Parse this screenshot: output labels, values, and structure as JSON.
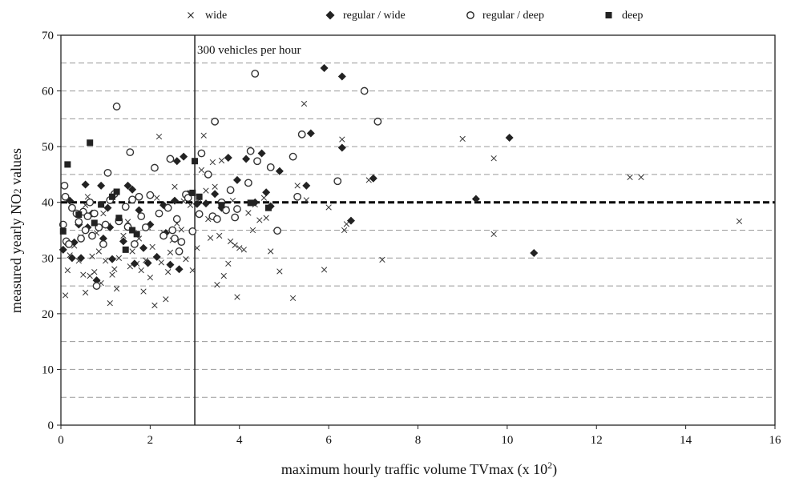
{
  "chart_data": {
    "type": "scatter",
    "title": "",
    "xlabel": "maximum hourly traffic volume TVmax (x 10",
    "xlabel_superscript": "2",
    "xlabel_suffix": ")",
    "ylabel_prefix": "measured yearly NO",
    "ylabel_subscript": "2",
    "ylabel_suffix": " values",
    "xlim": [
      0,
      16
    ],
    "ylim": [
      0,
      70
    ],
    "x_ticks": [
      0,
      2,
      4,
      6,
      8,
      10,
      12,
      14,
      16
    ],
    "y_ticks": [
      0,
      10,
      20,
      30,
      40,
      50,
      60,
      70
    ],
    "y_gridlines_dashed": [
      5,
      10,
      15,
      20,
      25,
      30,
      35,
      45,
      50,
      55,
      60,
      65
    ],
    "grid": true,
    "legend_position": "top",
    "reference_line_y": 40,
    "reference_line_x": 3,
    "annotation": "300 vehicles per hour",
    "series": [
      {
        "name": "wide",
        "marker": "x",
        "points": [
          [
            0.1,
            23.3
          ],
          [
            0.15,
            27.8
          ],
          [
            0.2,
            30.5
          ],
          [
            0.3,
            32.2
          ],
          [
            0.4,
            29.5
          ],
          [
            0.45,
            33.8
          ],
          [
            0.5,
            27.0
          ],
          [
            0.55,
            23.8
          ],
          [
            0.55,
            39.5
          ],
          [
            0.6,
            41.0
          ],
          [
            0.65,
            26.8
          ],
          [
            0.7,
            30.3
          ],
          [
            0.75,
            27.5
          ],
          [
            0.8,
            34.5
          ],
          [
            0.85,
            31.2
          ],
          [
            0.9,
            25.5
          ],
          [
            0.95,
            38.0
          ],
          [
            1.0,
            29.5
          ],
          [
            1.05,
            35.8
          ],
          [
            1.1,
            21.9
          ],
          [
            1.15,
            27.0
          ],
          [
            1.2,
            28.0
          ],
          [
            1.25,
            24.5
          ],
          [
            1.3,
            30.0
          ],
          [
            1.4,
            34.0
          ],
          [
            1.5,
            36.5
          ],
          [
            1.55,
            28.5
          ],
          [
            1.6,
            31.2
          ],
          [
            1.7,
            29.0
          ],
          [
            1.75,
            33.5
          ],
          [
            1.8,
            27.8
          ],
          [
            1.85,
            24.0
          ],
          [
            1.9,
            29.6
          ],
          [
            1.95,
            35.5
          ],
          [
            2.0,
            26.5
          ],
          [
            2.05,
            32.0
          ],
          [
            2.1,
            21.5
          ],
          [
            2.15,
            40.8
          ],
          [
            2.2,
            51.8
          ],
          [
            2.25,
            29.2
          ],
          [
            2.3,
            34.5
          ],
          [
            2.35,
            22.6
          ],
          [
            2.4,
            27.5
          ],
          [
            2.45,
            31.0
          ],
          [
            2.5,
            33.2
          ],
          [
            2.55,
            42.8
          ],
          [
            2.6,
            36.2
          ],
          [
            2.7,
            35.1
          ],
          [
            2.75,
            40.2
          ],
          [
            2.8,
            29.8
          ],
          [
            2.9,
            39.5
          ],
          [
            2.95,
            27.8
          ],
          [
            3.05,
            31.8
          ],
          [
            3.1,
            40.5
          ],
          [
            3.15,
            45.8
          ],
          [
            3.2,
            52.0
          ],
          [
            3.25,
            42.1
          ],
          [
            3.3,
            37.0
          ],
          [
            3.35,
            33.6
          ],
          [
            3.4,
            47.2
          ],
          [
            3.45,
            42.8
          ],
          [
            3.5,
            25.2
          ],
          [
            3.55,
            34.0
          ],
          [
            3.6,
            47.5
          ],
          [
            3.65,
            26.8
          ],
          [
            3.7,
            38.8
          ],
          [
            3.75,
            29.0
          ],
          [
            3.8,
            33.0
          ],
          [
            3.85,
            40.3
          ],
          [
            3.9,
            32.3
          ],
          [
            3.95,
            23.0
          ],
          [
            4.0,
            31.8
          ],
          [
            4.1,
            31.5
          ],
          [
            4.2,
            38.1
          ],
          [
            4.3,
            35.0
          ],
          [
            4.35,
            39.6
          ],
          [
            4.45,
            36.8
          ],
          [
            4.55,
            40.8
          ],
          [
            4.6,
            37.2
          ],
          [
            4.7,
            31.2
          ],
          [
            4.9,
            27.6
          ],
          [
            5.2,
            22.8
          ],
          [
            5.3,
            43.0
          ],
          [
            5.45,
            57.7
          ],
          [
            5.5,
            40.4
          ],
          [
            5.9,
            27.9
          ],
          [
            6.0,
            39.1
          ],
          [
            6.3,
            51.3
          ],
          [
            6.35,
            35.0
          ],
          [
            6.4,
            36.1
          ],
          [
            6.9,
            44.0
          ],
          [
            7.2,
            29.7
          ],
          [
            9.0,
            51.4
          ],
          [
            9.7,
            34.3
          ],
          [
            9.7,
            47.9
          ],
          [
            12.75,
            44.5
          ],
          [
            13.0,
            44.5
          ],
          [
            15.2,
            36.6
          ]
        ]
      },
      {
        "name": "regular / wide",
        "marker": "diamond",
        "points": [
          [
            0.05,
            31.5
          ],
          [
            0.15,
            32.5
          ],
          [
            0.2,
            40.3
          ],
          [
            0.25,
            30.0
          ],
          [
            0.3,
            32.8
          ],
          [
            0.4,
            36.0
          ],
          [
            0.45,
            30.0
          ],
          [
            0.55,
            43.2
          ],
          [
            0.6,
            35.5
          ],
          [
            0.7,
            38.0
          ],
          [
            0.8,
            26.0
          ],
          [
            0.9,
            43.0
          ],
          [
            0.95,
            33.5
          ],
          [
            1.05,
            39.0
          ],
          [
            1.1,
            35.5
          ],
          [
            1.15,
            29.8
          ],
          [
            1.3,
            37.0
          ],
          [
            1.4,
            33.0
          ],
          [
            1.5,
            43.0
          ],
          [
            1.6,
            42.3
          ],
          [
            1.65,
            29.0
          ],
          [
            1.75,
            38.6
          ],
          [
            1.85,
            31.8
          ],
          [
            1.95,
            29.1
          ],
          [
            2.0,
            36.0
          ],
          [
            2.15,
            30.2
          ],
          [
            2.3,
            39.5
          ],
          [
            2.35,
            34.5
          ],
          [
            2.45,
            28.8
          ],
          [
            2.55,
            40.3
          ],
          [
            2.6,
            47.4
          ],
          [
            2.65,
            28.0
          ],
          [
            2.75,
            48.2
          ],
          [
            2.85,
            41.5
          ],
          [
            3.05,
            39.7
          ],
          [
            3.25,
            39.8
          ],
          [
            3.45,
            41.5
          ],
          [
            3.6,
            39.0
          ],
          [
            3.75,
            48.0
          ],
          [
            3.95,
            44.0
          ],
          [
            4.15,
            47.8
          ],
          [
            4.35,
            40.0
          ],
          [
            4.5,
            48.8
          ],
          [
            4.6,
            41.8
          ],
          [
            4.7,
            39.3
          ],
          [
            4.9,
            45.6
          ],
          [
            5.5,
            43.0
          ],
          [
            5.6,
            52.4
          ],
          [
            5.9,
            64.1
          ],
          [
            6.3,
            62.6
          ],
          [
            6.3,
            49.8
          ],
          [
            6.5,
            36.7
          ],
          [
            7.0,
            44.3
          ],
          [
            9.3,
            40.6
          ],
          [
            10.05,
            51.6
          ],
          [
            10.6,
            30.9
          ]
        ]
      },
      {
        "name": "regular / deep",
        "marker": "circle",
        "points": [
          [
            0.05,
            36.0
          ],
          [
            0.08,
            43.0
          ],
          [
            0.1,
            41.0
          ],
          [
            0.12,
            33.0
          ],
          [
            0.18,
            32.5
          ],
          [
            0.25,
            39.0
          ],
          [
            0.35,
            38.0
          ],
          [
            0.4,
            36.5
          ],
          [
            0.45,
            33.5
          ],
          [
            0.5,
            38.3
          ],
          [
            0.55,
            35.0
          ],
          [
            0.6,
            37.5
          ],
          [
            0.65,
            40.0
          ],
          [
            0.7,
            34.0
          ],
          [
            0.75,
            38.0
          ],
          [
            0.8,
            25.0
          ],
          [
            0.85,
            35.5
          ],
          [
            0.95,
            32.5
          ],
          [
            1.0,
            36.0
          ],
          [
            1.05,
            45.3
          ],
          [
            1.1,
            40.4
          ],
          [
            1.2,
            41.5
          ],
          [
            1.25,
            57.2
          ],
          [
            1.3,
            36.6
          ],
          [
            1.45,
            39.2
          ],
          [
            1.5,
            35.6
          ],
          [
            1.55,
            49.0
          ],
          [
            1.6,
            40.5
          ],
          [
            1.65,
            32.5
          ],
          [
            1.75,
            41.0
          ],
          [
            1.8,
            37.5
          ],
          [
            1.9,
            35.5
          ],
          [
            2.0,
            41.3
          ],
          [
            2.1,
            46.2
          ],
          [
            2.2,
            38.0
          ],
          [
            2.3,
            34.0
          ],
          [
            2.4,
            39.0
          ],
          [
            2.45,
            47.8
          ],
          [
            2.5,
            35.0
          ],
          [
            2.55,
            33.5
          ],
          [
            2.6,
            37.0
          ],
          [
            2.65,
            31.2
          ],
          [
            2.7,
            32.9
          ],
          [
            2.8,
            41.4
          ],
          [
            2.85,
            40.8
          ],
          [
            2.95,
            34.8
          ],
          [
            3.1,
            37.9
          ],
          [
            3.15,
            48.8
          ],
          [
            3.3,
            45.0
          ],
          [
            3.4,
            37.5
          ],
          [
            3.45,
            54.5
          ],
          [
            3.5,
            37.0
          ],
          [
            3.6,
            40.0
          ],
          [
            3.7,
            38.6
          ],
          [
            3.8,
            42.2
          ],
          [
            3.9,
            37.3
          ],
          [
            3.95,
            38.8
          ],
          [
            4.2,
            43.5
          ],
          [
            4.25,
            49.2
          ],
          [
            4.35,
            63.1
          ],
          [
            4.4,
            47.4
          ],
          [
            4.7,
            46.3
          ],
          [
            4.85,
            34.9
          ],
          [
            5.2,
            48.2
          ],
          [
            5.3,
            41.0
          ],
          [
            5.4,
            52.2
          ],
          [
            6.2,
            43.8
          ],
          [
            6.8,
            60.0
          ],
          [
            7.1,
            54.5
          ]
        ]
      },
      {
        "name": "deep",
        "marker": "square",
        "points": [
          [
            0.05,
            34.8
          ],
          [
            0.15,
            46.8
          ],
          [
            0.4,
            37.8
          ],
          [
            0.65,
            50.7
          ],
          [
            0.75,
            36.3
          ],
          [
            0.9,
            39.6
          ],
          [
            1.15,
            41.0
          ],
          [
            1.25,
            41.9
          ],
          [
            1.3,
            37.2
          ],
          [
            1.45,
            31.5
          ],
          [
            1.6,
            35.0
          ],
          [
            1.7,
            34.3
          ],
          [
            2.95,
            41.7
          ],
          [
            3.0,
            47.4
          ],
          [
            3.1,
            41.0
          ],
          [
            3.6,
            39.5
          ],
          [
            4.25,
            39.9
          ],
          [
            4.65,
            39.0
          ]
        ]
      }
    ]
  }
}
